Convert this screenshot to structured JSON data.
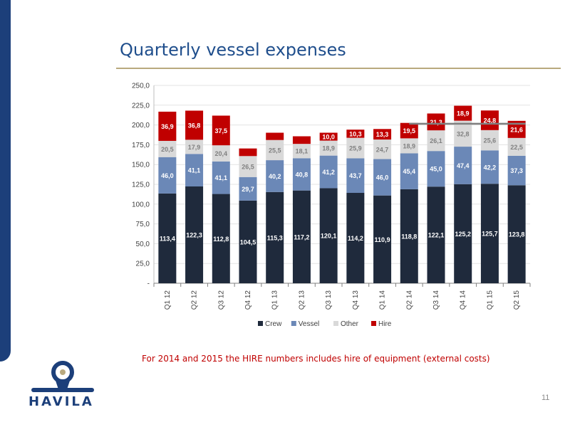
{
  "page": {
    "title": "Quarterly vessel expenses",
    "footnote": "For 2014 and 2015 the HIRE numbers includes hire of equipment (external costs)",
    "page_number": "11",
    "logo_text": "HAVILA"
  },
  "colors": {
    "Crew": "#1f2a3c",
    "Vessel": "#6b88b7",
    "Other": "#d9d9d9",
    "Hire": "#c00000",
    "title": "#1f4e8c",
    "sidebar": "#1c3f7a",
    "rule": "#b9a97e"
  },
  "chart_data": {
    "type": "bar",
    "stacked": true,
    "categories": [
      "Q1 12",
      "Q2 12",
      "Q3 12",
      "Q4 12",
      "Q1 13",
      "Q2 13",
      "Q3 13",
      "Q4 13",
      "Q1 14",
      "Q2 14",
      "Q3 14",
      "Q4 14",
      "Q1 15",
      "Q2 15"
    ],
    "series": [
      {
        "name": "Crew",
        "values": [
          113.4,
          122.3,
          112.8,
          104.5,
          115.3,
          117.2,
          120.1,
          114.2,
          110.9,
          118.8,
          122.1,
          125.2,
          125.7,
          123.8
        ],
        "labels": [
          "113,4",
          "122,3",
          "112,8",
          "104,5",
          "115,3",
          "117,2",
          "120,1",
          "114,2",
          "110,9",
          "118,8",
          "122,1",
          "125,2",
          "125,7",
          "123,8"
        ]
      },
      {
        "name": "Vessel",
        "values": [
          46.0,
          41.1,
          41.1,
          29.7,
          40.2,
          40.8,
          41.2,
          43.7,
          46.0,
          45.4,
          45.0,
          47.4,
          42.2,
          37.3
        ],
        "labels": [
          "46,0",
          "41,1",
          "41,1",
          "29,7",
          "40,2",
          "40,8",
          "41,2",
          "43,7",
          "46,0",
          "45,4",
          "45,0",
          "47,4",
          "42,2",
          "37,3"
        ]
      },
      {
        "name": "Other",
        "values": [
          20.5,
          17.9,
          20.4,
          26.5,
          25.5,
          18.1,
          18.9,
          25.9,
          24.7,
          18.9,
          26.1,
          32.8,
          25.6,
          22.5
        ],
        "labels": [
          "20,5",
          "17,9",
          "20,4",
          "26,5",
          "25,5",
          "18,1",
          "18,9",
          "25,9",
          "24,7",
          "18,9",
          "26,1",
          "32,8",
          "25,6",
          "22,5"
        ]
      },
      {
        "name": "Hire",
        "values": [
          36.9,
          36.8,
          37.5,
          9.6,
          9.2,
          9.6,
          10.0,
          10.3,
          13.3,
          19.5,
          21.3,
          18.9,
          24.8,
          21.6
        ],
        "labels": [
          "36,9",
          "36,8",
          "37,5",
          "",
          "",
          "",
          "10,0",
          "10,3",
          "13,3",
          "19,5",
          "21,3",
          "18,9",
          "24,8",
          "21,6"
        ]
      }
    ],
    "y_ticks": [
      "-",
      "25,0",
      "50,0",
      "75,0",
      "100,0",
      "125,0",
      "150,0",
      "175,0",
      "200,0",
      "225,0",
      "250,0"
    ],
    "ylim": [
      0,
      250
    ],
    "reference_line": {
      "value": 201.5,
      "from_category": "Q2 14",
      "to_category": "Q2 15"
    },
    "grid": true,
    "legend_position": "bottom",
    "title": "",
    "xlabel": "",
    "ylabel": ""
  }
}
